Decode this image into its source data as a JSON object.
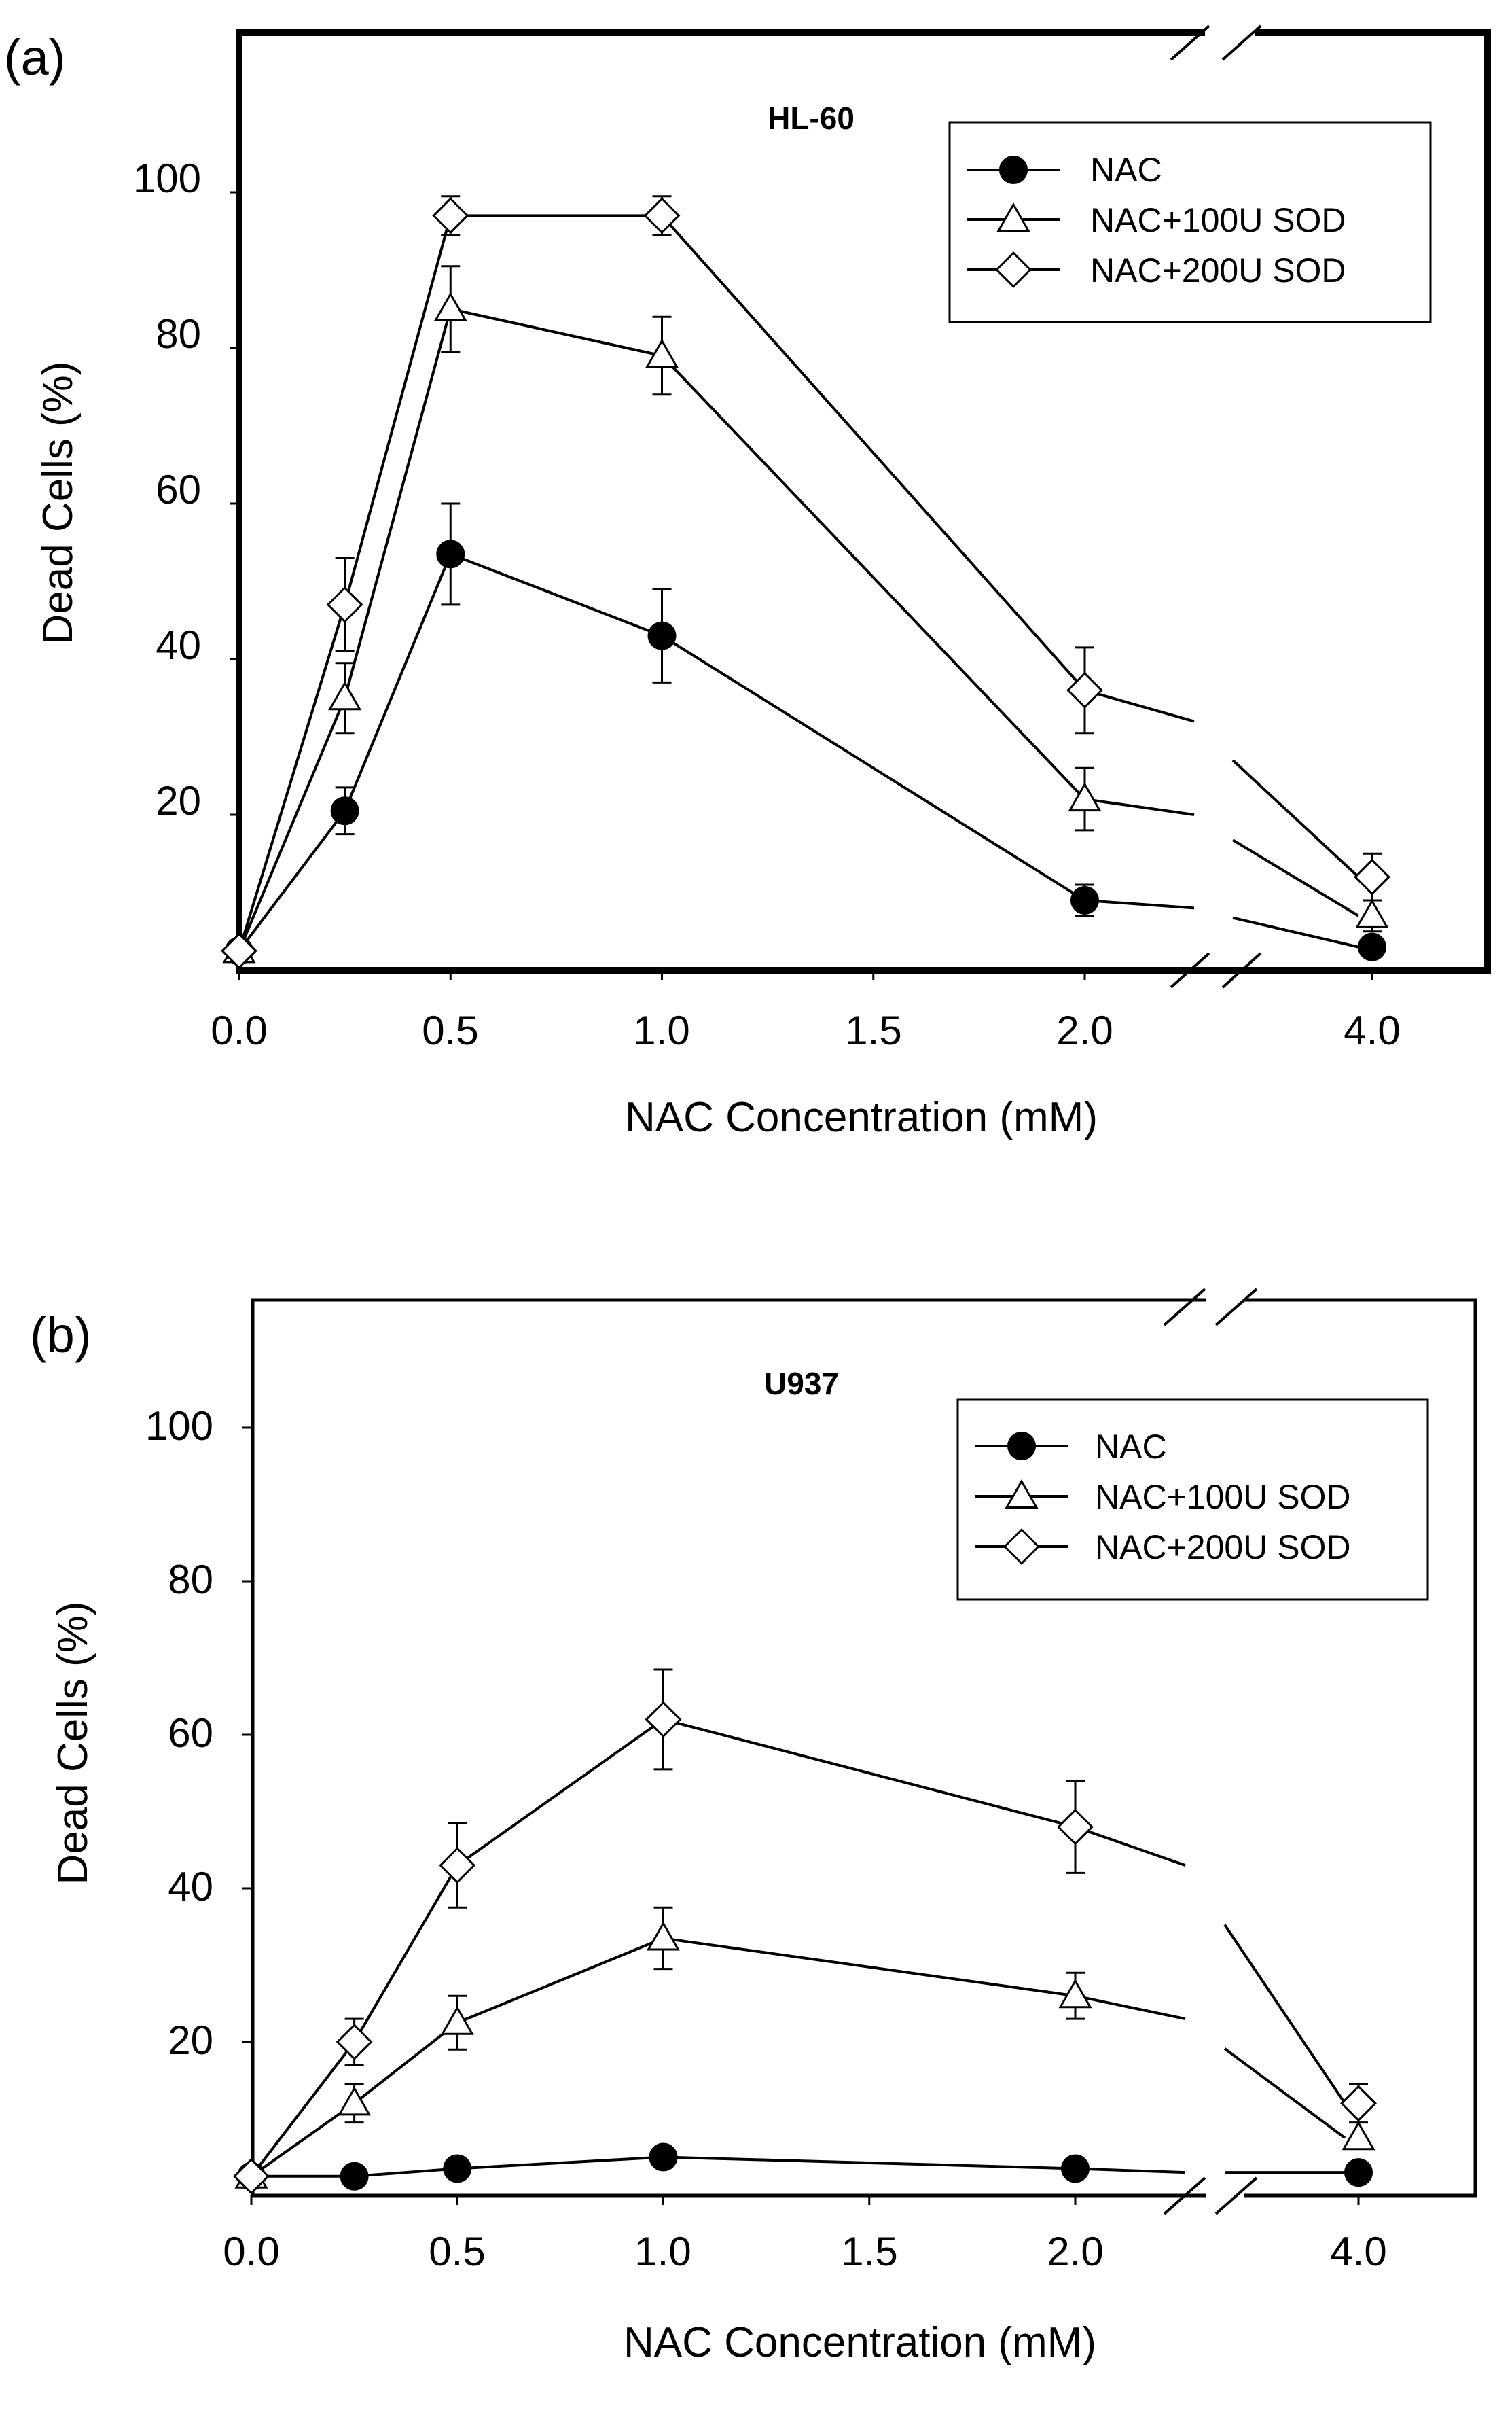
{
  "chart_data": [
    {
      "panel_label": "(a)",
      "type": "line",
      "title": "HL-60",
      "xlabel": "NAC Concentration (mM)",
      "ylabel": "Dead Cells (%)",
      "x_ticks": [
        "0.0",
        "0.5",
        "1.0",
        "1.5",
        "2.0",
        "4.0"
      ],
      "y_ticks": [
        "20",
        "40",
        "60",
        "80",
        "100"
      ],
      "xlim": [
        0,
        2.3
      ],
      "ylim": [
        0,
        115
      ],
      "x_axis_break": "between 2.0 and 4.0",
      "legend_position": "top-right",
      "grid": false,
      "series": [
        {
          "name": "NAC",
          "marker": "filled-circle",
          "x": [
            0,
            0.25,
            0.5,
            1.0,
            2.0,
            4.0
          ],
          "y": [
            2.5,
            20.5,
            53.5,
            43,
            9,
            3
          ],
          "err": [
            0,
            3,
            6.5,
            6,
            2,
            0
          ],
          "trail_end": 8
        },
        {
          "name": "NAC+100U SOD",
          "marker": "open-triangle",
          "x": [
            0,
            0.25,
            0.5,
            1.0,
            2.0,
            4.0
          ],
          "y": [
            2.5,
            35,
            85,
            79,
            22,
            7
          ],
          "err": [
            0,
            4.5,
            5.5,
            5,
            4,
            2
          ],
          "trail_end": 20
        },
        {
          "name": "NAC+200U SOD",
          "marker": "open-diamond",
          "x": [
            0,
            0.25,
            0.5,
            1.0,
            2.0,
            4.0
          ],
          "y": [
            2.5,
            47,
            97,
            97,
            36,
            12
          ],
          "err": [
            0,
            6,
            2.5,
            2.5,
            5.5,
            3
          ],
          "trail_end": 32
        }
      ]
    },
    {
      "panel_label": "(b)",
      "type": "line",
      "title": "U937",
      "xlabel": "NAC Concentration (mM)",
      "ylabel": "Dead Cells (%)",
      "x_ticks": [
        "0.0",
        "0.5",
        "1.0",
        "1.5",
        "2.0",
        "4.0"
      ],
      "y_ticks": [
        "20",
        "40",
        "60",
        "80",
        "100"
      ],
      "xlim": [
        0,
        2.3
      ],
      "ylim": [
        0,
        117
      ],
      "x_axis_break": "between 2.0 and 4.0",
      "legend_position": "top-right",
      "grid": false,
      "series": [
        {
          "name": "NAC",
          "marker": "filled-circle",
          "x": [
            0,
            0.25,
            0.5,
            1.0,
            2.0,
            4.0
          ],
          "y": [
            2.5,
            2.5,
            3.5,
            5,
            3.5,
            3
          ],
          "err": [
            0,
            0,
            0,
            0,
            0,
            0
          ],
          "trail_end": 3
        },
        {
          "name": "NAC+100U SOD",
          "marker": "open-triangle",
          "x": [
            0,
            0.25,
            0.5,
            1.0,
            2.0,
            4.0
          ],
          "y": [
            2.5,
            12,
            22.5,
            33.5,
            26,
            7.5
          ],
          "err": [
            0,
            2.5,
            3.5,
            4,
            3,
            0
          ],
          "trail_end": 23
        },
        {
          "name": "NAC+200U SOD",
          "marker": "open-diamond",
          "x": [
            0,
            0.25,
            0.5,
            1.0,
            2.0,
            4.0
          ],
          "y": [
            2.5,
            20,
            43,
            62,
            48,
            12
          ],
          "err": [
            0,
            3,
            5.5,
            6.5,
            6,
            2.5
          ],
          "trail_end": 43
        }
      ]
    }
  ]
}
